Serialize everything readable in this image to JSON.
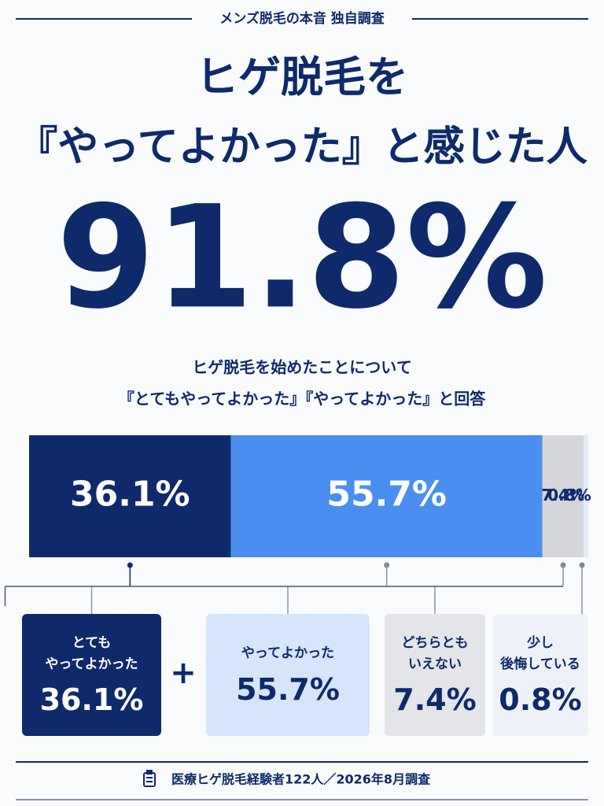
{
  "chart_data": {
    "type": "bar",
    "stacked": true,
    "orientation": "horizontal",
    "header": "メンズ脱毛の本音 独自調査",
    "title": [
      "ヒゲ脱毛を",
      "『やってよかった』と感じた人"
    ],
    "headline": "91.8%",
    "subtitle": [
      "ヒゲ脱毛を始めたことについて",
      "『とてもやってよかった』『やってよかった』と回答"
    ],
    "xlim": [
      0,
      100
    ],
    "series": [
      {
        "name": "とても\nやってよかった",
        "color": "#0f2a6b",
        "values": [
          36.1
        ],
        "value_labels": [
          "36.1%"
        ]
      },
      {
        "name": "やってよかった",
        "color": "#4a8ff0",
        "values": [
          55.7
        ],
        "value_labels": [
          "55.7%"
        ]
      },
      {
        "name": "どちらとも\nいえない",
        "color": "#d4d6da",
        "values": [
          7.4
        ],
        "value_labels": [
          "7.4%"
        ]
      },
      {
        "name": "少し\n後悔している",
        "color": "#e3ecfb",
        "values": [
          0.8
        ],
        "value_labels": [
          "0.8%"
        ]
      }
    ],
    "plus": "+",
    "footer": "医療ヒゲ脱毛経験者122人／2026年8月調査"
  }
}
